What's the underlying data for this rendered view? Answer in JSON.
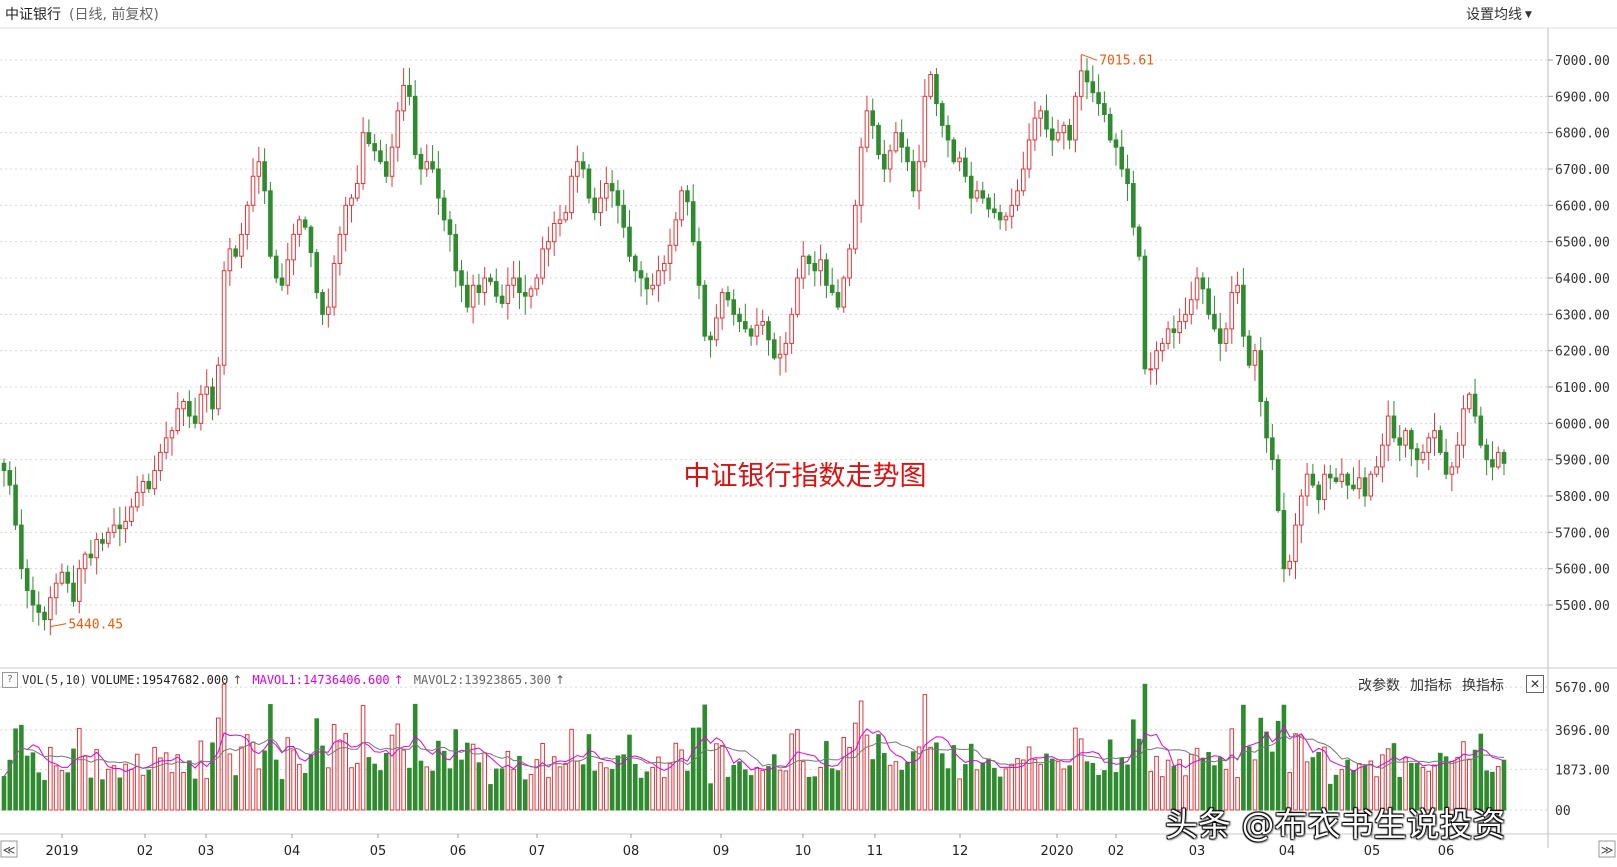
{
  "header": {
    "title": "中证银行",
    "subtitle": "(日线, 前复权)",
    "set_ma_label": "设置均线"
  },
  "colors": {
    "up": "#e2363a",
    "down": "#2e8b2e",
    "grid": "#d8d8d8",
    "text": "#333333",
    "annotation": "#e85d0c",
    "mavol1": "#e000e0",
    "mavol2": "#777777",
    "chart_title": "#e01010"
  },
  "chart_data": [
    {
      "type": "candlestick",
      "title": "中证银行指数走势图",
      "ylim": [
        5440,
        7020
      ],
      "y_ticks": [
        "7000.00",
        "6900.00",
        "6800.00",
        "6700.00",
        "6600.00",
        "6500.00",
        "6400.00",
        "6300.00",
        "6200.00",
        "6100.00",
        "6000.00",
        "5900.00",
        "5800.00",
        "5700.00",
        "5600.00",
        "5500.00"
      ],
      "x_tick_labels": [
        "2019",
        "02",
        "03",
        "04",
        "05",
        "06",
        "07",
        "08",
        "09",
        "10",
        "11",
        "12",
        "2020",
        "02",
        "03",
        "04",
        "05",
        "06"
      ],
      "grid": true,
      "annotations": [
        {
          "label": "7015.61",
          "value": 7015.61,
          "kind": "high"
        },
        {
          "label": "5440.45",
          "value": 5440.45,
          "kind": "low"
        }
      ],
      "closes": [
        5870,
        5830,
        5720,
        5600,
        5540,
        5500,
        5480,
        5460,
        5520,
        5560,
        5590,
        5560,
        5510,
        5600,
        5640,
        5630,
        5680,
        5670,
        5700,
        5720,
        5710,
        5730,
        5770,
        5810,
        5840,
        5820,
        5870,
        5920,
        5960,
        5980,
        6040,
        6060,
        6020,
        6000,
        6080,
        6100,
        6040,
        6160,
        6420,
        6480,
        6460,
        6520,
        6600,
        6680,
        6720,
        6640,
        6460,
        6400,
        6380,
        6450,
        6520,
        6560,
        6540,
        6470,
        6360,
        6300,
        6320,
        6440,
        6520,
        6600,
        6620,
        6660,
        6800,
        6770,
        6750,
        6720,
        6680,
        6760,
        6860,
        6930,
        6900,
        6740,
        6700,
        6720,
        6700,
        6620,
        6560,
        6520,
        6420,
        6380,
        6320,
        6380,
        6360,
        6400,
        6390,
        6350,
        6330,
        6380,
        6400,
        6360,
        6350,
        6370,
        6400,
        6480,
        6500,
        6550,
        6560,
        6580,
        6680,
        6720,
        6700,
        6620,
        6580,
        6620,
        6660,
        6640,
        6600,
        6540,
        6460,
        6420,
        6400,
        6370,
        6380,
        6420,
        6440,
        6490,
        6560,
        6640,
        6610,
        6500,
        6380,
        6240,
        6230,
        6290,
        6360,
        6340,
        6300,
        6280,
        6260,
        6240,
        6270,
        6280,
        6230,
        6180,
        6190,
        6220,
        6300,
        6400,
        6460,
        6440,
        6420,
        6450,
        6380,
        6360,
        6320,
        6400,
        6480,
        6600,
        6760,
        6860,
        6820,
        6740,
        6700,
        6750,
        6800,
        6760,
        6720,
        6640,
        6720,
        6900,
        6960,
        6880,
        6820,
        6780,
        6720,
        6730,
        6680,
        6620,
        6640,
        6620,
        6590,
        6580,
        6560,
        6570,
        6600,
        6640,
        6700,
        6780,
        6840,
        6860,
        6810,
        6780,
        6800,
        6820,
        6780,
        6900,
        6970,
        6940,
        6910,
        6880,
        6850,
        6780,
        6760,
        6700,
        6660,
        6540,
        6460,
        6150,
        6150,
        6200,
        6220,
        6260,
        6250,
        6280,
        6300,
        6340,
        6400,
        6370,
        6300,
        6260,
        6220,
        6260,
        6360,
        6380,
        6240,
        6160,
        6200,
        6060,
        5960,
        5900,
        5760,
        5600,
        5620,
        5720,
        5800,
        5860,
        5830,
        5790,
        5860,
        5850,
        5840,
        5860,
        5830,
        5820,
        5850,
        5800,
        5860,
        5880,
        5940,
        6020,
        5960,
        5940,
        5980,
        5930,
        5900,
        5920,
        5960,
        5980,
        5920,
        5860,
        5880,
        5940,
        6040,
        6080,
        6020,
        5940,
        5900,
        5880,
        5920,
        5890
      ]
    },
    {
      "type": "bar",
      "title": "VOL(5,10)",
      "y_ticks": [
        "5670.00",
        "3696.00",
        "1873.00",
        "00"
      ],
      "ylim": [
        0,
        6000
      ]
    }
  ],
  "volume_legend": {
    "name": "VOL(5,10)",
    "volume": "VOLUME:19547682.000",
    "mavol1": "MAVOL1:14736406.600",
    "mavol2": "MAVOL2:13923865.300",
    "arrow": "↑"
  },
  "volume_tools": {
    "modify": "改参数",
    "add": "加指标",
    "switch": "换指标",
    "close": "✕"
  },
  "nav": {
    "prev": "≪",
    "next": "≫"
  },
  "watermark": "头条 @布衣书生说投资"
}
